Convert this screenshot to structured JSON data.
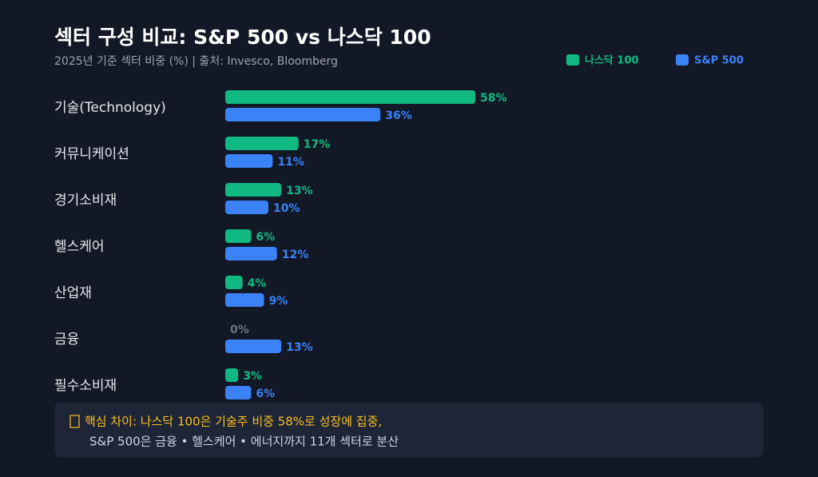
{
  "chart_data": {
    "type": "bar",
    "orientation": "horizontal",
    "title": "섹터 구성 비교: S&P 500 vs 나스닥 100",
    "subtitle": "2025년 기준 섹터 비중 (%) | 출처: Invesco, Bloomberg",
    "categories": [
      "기술(Technology)",
      "커뮤니케이션",
      "경기소비재",
      "헬스케어",
      "산업재",
      "금융",
      "필수소비재"
    ],
    "series": [
      {
        "name": "나스닥 100",
        "color": "#10b981",
        "values": [
          58,
          17,
          13,
          6,
          4,
          0,
          3
        ],
        "value_labels": [
          "58%",
          "17%",
          "13%",
          "6%",
          "4%",
          "0%",
          "3%"
        ]
      },
      {
        "name": "S&P 500",
        "color": "#3b82f6",
        "values": [
          36,
          11,
          10,
          12,
          9,
          13,
          6
        ],
        "value_labels": [
          "36%",
          "11%",
          "10%",
          "12%",
          "9%",
          "13%",
          "6%"
        ]
      }
    ],
    "legend": "top-right",
    "note": [
      "핵심 차이: 나스닥 100은 기술주 비중 58%로 성장에 집중,",
      "S&P 500은 금융 • 헬스케어 • 에너지까지 11개 섹터로 분산"
    ]
  }
}
